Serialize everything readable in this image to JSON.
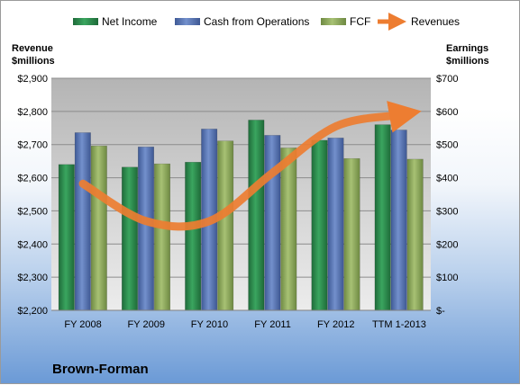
{
  "company": "Brown-Forman",
  "chart_data": {
    "type": "bar",
    "categories": [
      "FY 2008",
      "FY 2009",
      "FY 2010",
      "FY 2011",
      "FY 2012",
      "TTM 1-2013"
    ],
    "series": [
      {
        "name": "Net Income",
        "axis": "right",
        "color": "#2e8b4e",
        "values": [
          440,
          432,
          447,
          574,
          513,
          560
        ]
      },
      {
        "name": "Cash from Operations",
        "axis": "right",
        "color": "#5b78b8",
        "values": [
          536,
          493,
          547,
          528,
          520,
          544
        ]
      },
      {
        "name": "FCF",
        "axis": "right",
        "color": "#8fac5c",
        "values": [
          496,
          442,
          511,
          490,
          458,
          456
        ]
      },
      {
        "name": "Revenues",
        "axis": "left",
        "type": "line",
        "color": "#ed7d31",
        "values": [
          2582,
          2469,
          2469,
          2615,
          2755,
          2789
        ]
      }
    ],
    "left_axis": {
      "title_line1": "Revenue",
      "title_line2": "$millions",
      "ylim": [
        2200,
        2900
      ],
      "ticks": [
        "$2,200",
        "$2,300",
        "$2,400",
        "$2,500",
        "$2,600",
        "$2,700",
        "$2,800",
        "$2,900"
      ]
    },
    "right_axis": {
      "title_line1": "Earnings",
      "title_line2": "$millions",
      "ylim": [
        0,
        700
      ],
      "ticks": [
        "$-",
        "$100",
        "$200",
        "$300",
        "$400",
        "$500",
        "$600",
        "$700"
      ]
    },
    "legend": {
      "position": "top",
      "items": [
        "Net Income",
        "Cash from Operations",
        "FCF",
        "Revenues"
      ]
    },
    "grid": true,
    "plot_background": "#c0c0c0"
  }
}
